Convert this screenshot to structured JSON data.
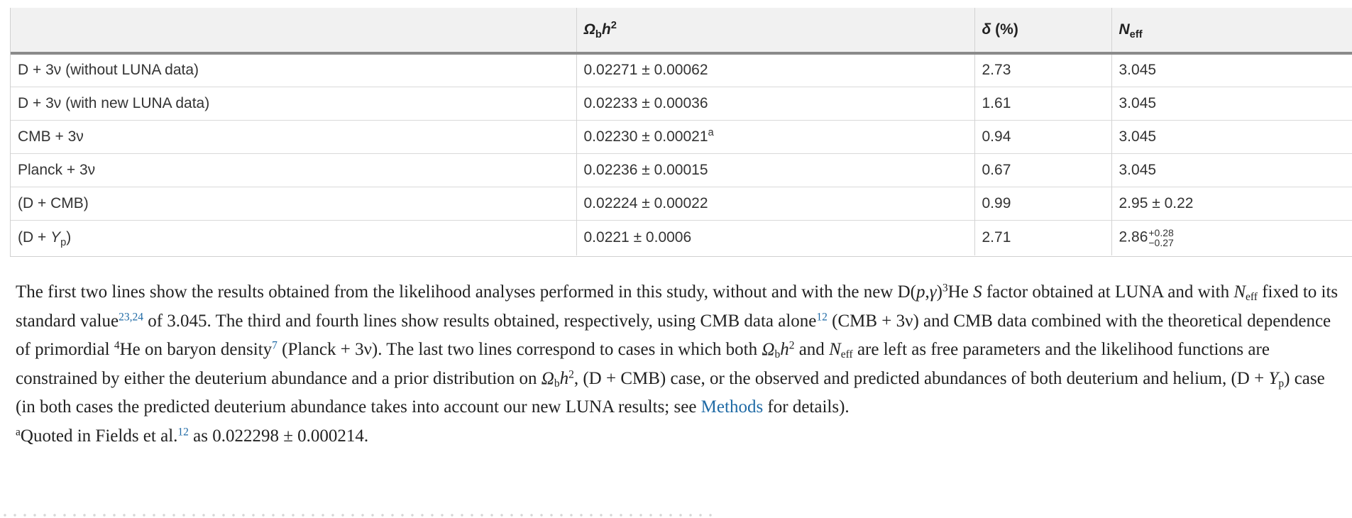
{
  "table": {
    "headers": {
      "h1": "",
      "h2_omega": "Ω",
      "h2_sub": "b",
      "h2_h": "h",
      "h2_sup": "2",
      "h3_delta": "δ",
      "h3_unit": " (%)",
      "h4_n": "N",
      "h4_sub": "eff"
    },
    "rows": [
      {
        "c1": "D + 3ν (without LUNA data)",
        "c2": "0.02271 ± 0.00062",
        "c3": "2.73",
        "c4": "3.045"
      },
      {
        "c1": "D + 3ν (with new LUNA data)",
        "c2": "0.02233 ± 0.00036",
        "c3": "1.61",
        "c4": "3.045"
      },
      {
        "c1": "CMB + 3ν",
        "c2": "0.02230 ± 0.00021",
        "c2_note": "a",
        "c3": "0.94",
        "c4": "3.045"
      },
      {
        "c1": "Planck + 3ν",
        "c2": "0.02236 ± 0.00015",
        "c3": "0.67",
        "c4": "3.045"
      },
      {
        "c1": "(D + CMB)",
        "c2": "0.02224 ± 0.00022",
        "c3": "0.99",
        "c4": "2.95 ± 0.22"
      },
      {
        "c1_pre": "(D + ",
        "c1_y": "Y",
        "c1_sub": "p",
        "c1_post": ")",
        "c2": "0.0221 ± 0.0006",
        "c3": "2.71",
        "c4_base": "2.86",
        "c4_plus": "+0.28",
        "c4_minus": "−0.27"
      }
    ]
  },
  "caption": {
    "p1": "The first two lines show the results obtained from the likelihood analyses performed in this study, without and with the new D(",
    "p1_p": "p",
    "p1_comma": ",",
    "p1_gamma": "γ",
    "p1_close": ")",
    "p1_sup3": "3",
    "p1_he": "He ",
    "p1_s": "S",
    "p1_factor": " factor obtained at LUNA and with ",
    "p1_n": "N",
    "p1_eff": "eff",
    "p1_fixed": " fixed to its standard value",
    "ref_23_24": "23,24",
    "p1_of": " of 3.045. The third and fourth lines show results obtained, respectively, using CMB data alone",
    "ref_12a": "12",
    "p1_cmb": " (CMB + 3ν) and CMB data combined with the theoretical dependence of primordial ",
    "p1_sup4": "4",
    "p1_he2": "He on baryon density",
    "ref_7": "7",
    "p1_planck": " (Planck + 3ν). The last two lines correspond to cases in which both ",
    "om1": "Ω",
    "om1_sub": "b",
    "om1_h": "h",
    "om1_sup": "2",
    "p1_and": " and ",
    "n2": "N",
    "n2_sub": "eff",
    "p1_free": " are left as free parameters and the likelihood functions are constrained by either the deuterium abundance and a prior distribution on ",
    "om2": "Ω",
    "om2_sub": "b",
    "om2_h": "h",
    "om2_sup": "2",
    "p1_dcmb": ", (D + CMB) case, or the observed and predicted abundances of both deuterium and helium, (D + ",
    "y": "Y",
    "y_sub": "p",
    "p1_end": ") case (in both cases the predicted deuterium abundance takes into account our new LUNA results; see ",
    "methods_link": "Methods",
    "p1_details": " for details).",
    "fn_sup": "a",
    "fn_text": "Quoted in Fields et al.",
    "ref_12b": "12",
    "fn_value": " as 0.022298 ± 0.000214."
  }
}
